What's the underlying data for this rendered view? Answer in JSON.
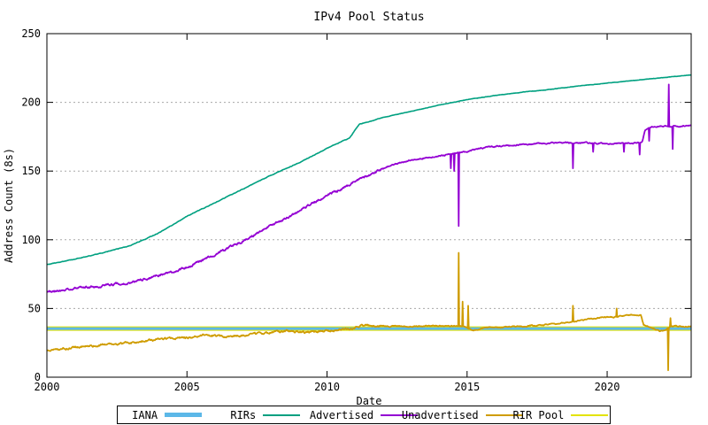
{
  "title": "IPv4 Pool Status",
  "axes": {
    "xlabel": "Date",
    "ylabel": "Address Count (8s)",
    "x_ticks": [
      2000,
      2005,
      2010,
      2015,
      2020
    ],
    "y_ticks": [
      0,
      50,
      100,
      150,
      200,
      250
    ],
    "x_range": [
      2000,
      2023
    ],
    "y_range": [
      0,
      250
    ]
  },
  "colors": {
    "background": "#ffffff",
    "axis": "#000000",
    "grid": "#a8a8a8",
    "iana": "#5cb8e8",
    "rirs": "#00a080",
    "advertised": "#9400d3",
    "unadvertised": "#cf9c00",
    "rir_pool": "#e3e300"
  },
  "legend": {
    "items": [
      {
        "label": "IANA",
        "color": "#5cb8e8",
        "thickness": 5
      },
      {
        "label": "RIRs",
        "color": "#00a080",
        "thickness": 2
      },
      {
        "label": "Advertised",
        "color": "#9400d3",
        "thickness": 2
      },
      {
        "label": "Unadvertised",
        "color": "#cf9c00",
        "thickness": 2
      },
      {
        "label": "RIR Pool",
        "color": "#e3e300",
        "thickness": 2
      }
    ]
  },
  "chart_data": {
    "type": "line",
    "title": "IPv4 Pool Status",
    "xlabel": "Date",
    "ylabel": "Address Count (8s)",
    "xlim": [
      2000,
      2023
    ],
    "ylim": [
      0,
      250
    ],
    "grid": "horizontal-dotted",
    "legend_position": "bottom-center",
    "series": [
      {
        "name": "RIR Pool",
        "color": "#e3e300",
        "width": 5,
        "noise": 0,
        "points": [
          [
            2000,
            35.4
          ],
          [
            2023,
            35.4
          ]
        ],
        "spikes": []
      },
      {
        "name": "IANA",
        "color": "#5cb8e8",
        "width": 3,
        "noise": 0,
        "points": [
          [
            2000,
            35.4
          ],
          [
            2023,
            35.4
          ]
        ],
        "spikes": []
      },
      {
        "name": "RIRs",
        "color": "#00a080",
        "width": 1.6,
        "noise": 0.25,
        "points": [
          [
            2000,
            82
          ],
          [
            2001,
            86
          ],
          [
            2002,
            90.5
          ],
          [
            2003,
            96
          ],
          [
            2004,
            105
          ],
          [
            2005,
            117
          ],
          [
            2006,
            127
          ],
          [
            2007,
            137
          ],
          [
            2008,
            147
          ],
          [
            2009,
            156
          ],
          [
            2010,
            166.5
          ],
          [
            2010.8,
            174
          ],
          [
            2011.15,
            184
          ],
          [
            2011.5,
            186
          ],
          [
            2012,
            189
          ],
          [
            2013,
            193.5
          ],
          [
            2014,
            198
          ],
          [
            2015,
            202
          ],
          [
            2016,
            205
          ],
          [
            2017,
            207.5
          ],
          [
            2018,
            209.5
          ],
          [
            2019,
            212
          ],
          [
            2020,
            214
          ],
          [
            2021,
            216
          ],
          [
            2022,
            218
          ],
          [
            2023,
            220
          ]
        ],
        "spikes": []
      },
      {
        "name": "Advertised",
        "color": "#9400d3",
        "width": 1.8,
        "noise": 1.0,
        "points": [
          [
            2000,
            62
          ],
          [
            2001,
            64.5
          ],
          [
            2002,
            66.5
          ],
          [
            2003,
            69
          ],
          [
            2004,
            74
          ],
          [
            2005,
            80
          ],
          [
            2006,
            89
          ],
          [
            2007,
            99
          ],
          [
            2008,
            110
          ],
          [
            2009,
            121
          ],
          [
            2010,
            132
          ],
          [
            2011,
            142
          ],
          [
            2011.6,
            148
          ],
          [
            2012,
            152
          ],
          [
            2012.4,
            155
          ],
          [
            2013,
            158
          ],
          [
            2014,
            161
          ],
          [
            2014.6,
            163
          ],
          [
            2015,
            164
          ],
          [
            2015.4,
            166.5
          ],
          [
            2016,
            168
          ],
          [
            2017,
            169.5
          ],
          [
            2018,
            170.5
          ],
          [
            2019,
            170.5
          ],
          [
            2020,
            170
          ],
          [
            2021,
            170.5
          ],
          [
            2021.25,
            171
          ],
          [
            2021.35,
            180
          ],
          [
            2021.6,
            182
          ],
          [
            2022,
            182.5
          ],
          [
            2022.5,
            182.5
          ],
          [
            2023,
            183
          ]
        ],
        "spikes": [
          [
            2014.42,
            152
          ],
          [
            2014.55,
            150
          ],
          [
            2014.7,
            110
          ],
          [
            2018.78,
            152
          ],
          [
            2019.5,
            164
          ],
          [
            2020.6,
            164
          ],
          [
            2021.15,
            162
          ],
          [
            2021.5,
            172
          ],
          [
            2022.2,
            213
          ],
          [
            2022.35,
            166
          ]
        ]
      },
      {
        "name": "Unadvertised",
        "color": "#cf9c00",
        "width": 1.8,
        "noise": 0.9,
        "points": [
          [
            2000,
            19.5
          ],
          [
            2001,
            21.5
          ],
          [
            2002,
            23.5
          ],
          [
            2003,
            25
          ],
          [
            2004,
            27.5
          ],
          [
            2005,
            29
          ],
          [
            2005.7,
            31
          ],
          [
            2006.3,
            29.5
          ],
          [
            2007,
            30.5
          ],
          [
            2008,
            32.5
          ],
          [
            2008.6,
            33.5
          ],
          [
            2009.2,
            32.5
          ],
          [
            2010,
            33.5
          ],
          [
            2010.8,
            35
          ],
          [
            2011.2,
            37
          ],
          [
            2011.5,
            38
          ],
          [
            2012,
            37
          ],
          [
            2013,
            37
          ],
          [
            2014,
            37.5
          ],
          [
            2014.9,
            37
          ],
          [
            2015.2,
            34
          ],
          [
            2015.6,
            36
          ],
          [
            2016,
            36.5
          ],
          [
            2017,
            37
          ],
          [
            2018,
            38.5
          ],
          [
            2019,
            41
          ],
          [
            2019.6,
            43
          ],
          [
            2020,
            43.5
          ],
          [
            2020.6,
            44.5
          ],
          [
            2021,
            45.5
          ],
          [
            2021.2,
            45
          ],
          [
            2021.3,
            38
          ],
          [
            2021.55,
            36
          ],
          [
            2021.9,
            33.5
          ],
          [
            2022.1,
            34.5
          ],
          [
            2022.3,
            37
          ],
          [
            2023,
            37
          ]
        ],
        "spikes": [
          [
            2014.7,
            90.5
          ],
          [
            2014.85,
            55
          ],
          [
            2015.05,
            52
          ],
          [
            2018.78,
            52
          ],
          [
            2020.35,
            50
          ],
          [
            2022.18,
            5
          ],
          [
            2022.26,
            43
          ]
        ]
      }
    ]
  }
}
